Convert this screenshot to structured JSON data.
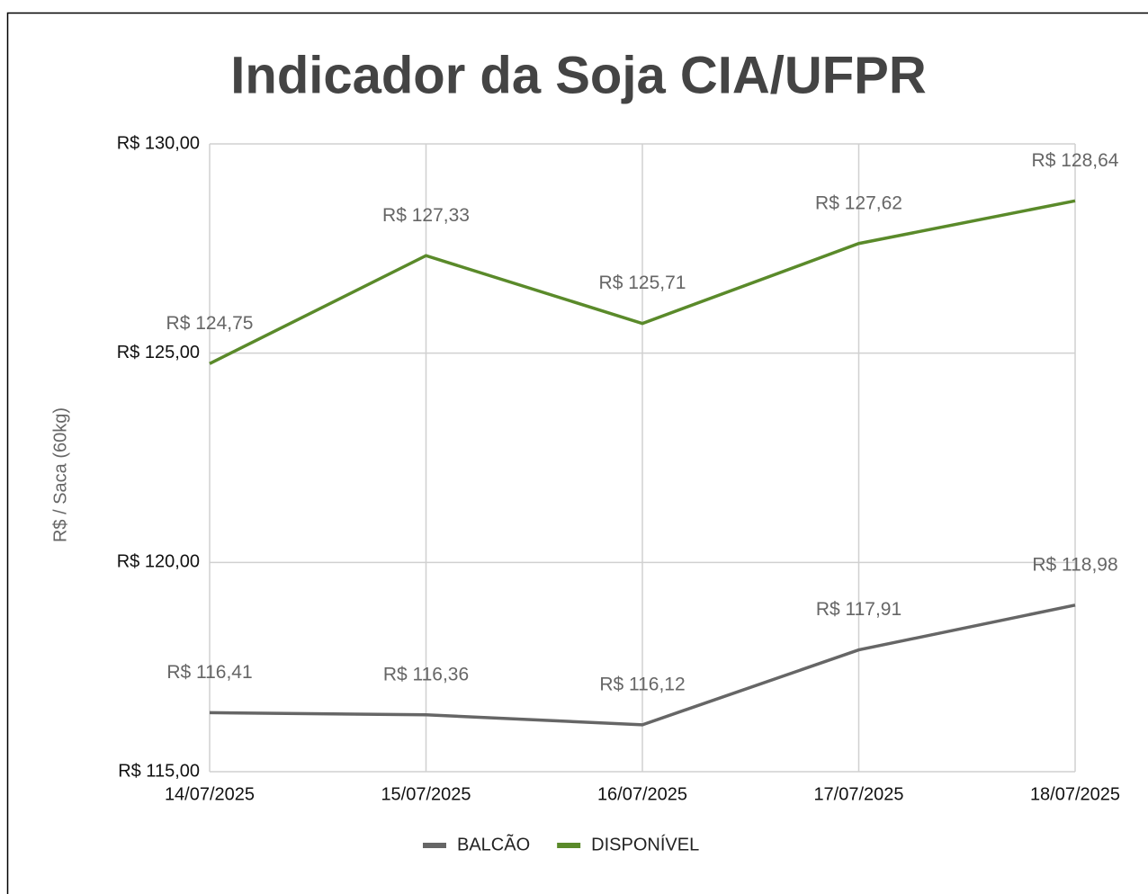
{
  "chart_data": {
    "type": "line",
    "title": "Indicador da Soja CIA/UFPR",
    "y_label": "R$ / Saca (60kg)",
    "categories": [
      "14/07/2025",
      "15/07/2025",
      "16/07/2025",
      "17/07/2025",
      "18/07/2025"
    ],
    "series": [
      {
        "name": "BALCÃO",
        "color": "#666666",
        "values": [
          116.41,
          116.36,
          116.12,
          117.91,
          118.98
        ],
        "value_labels": [
          "R$ 116,41",
          "R$ 116,36",
          "R$ 116,12",
          "R$ 117,91",
          "R$ 118,98"
        ]
      },
      {
        "name": "DISPONÍVEL",
        "color": "#5a8a2a",
        "values": [
          124.75,
          127.33,
          125.71,
          127.62,
          128.64
        ],
        "value_labels": [
          "R$ 124,75",
          "R$ 127,33",
          "R$ 125,71",
          "R$ 127,62",
          "R$ 128,64"
        ]
      }
    ],
    "ylim": [
      115,
      130
    ],
    "yticks": [
      {
        "value": 115,
        "label": "R$ 115,00"
      },
      {
        "value": 120,
        "label": "R$ 120,00"
      },
      {
        "value": 125,
        "label": "R$ 125,00"
      },
      {
        "value": 130,
        "label": "R$ 130,00"
      }
    ],
    "grid": true,
    "legend": "bottom"
  }
}
